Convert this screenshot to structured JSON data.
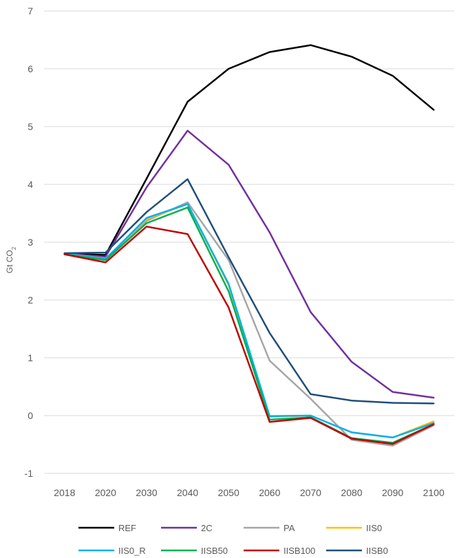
{
  "chart_data": {
    "type": "line",
    "title": "",
    "xlabel": "",
    "ylabel_main": "Gt CO",
    "ylabel_sub": "2",
    "ylim": [
      -1,
      7
    ],
    "yticks": [
      "-1",
      "0",
      "1",
      "2",
      "3",
      "4",
      "5",
      "6",
      "7"
    ],
    "categories": [
      "2018",
      "2020",
      "2030",
      "2040",
      "2050",
      "2060",
      "2070",
      "2080",
      "2090",
      "2100"
    ],
    "grid": "horizontal",
    "legend_position": "bottom",
    "series": [
      {
        "name": "REF",
        "color": "#000000",
        "values": [
          2.8,
          2.78,
          4.1,
          5.43,
          6.0,
          6.29,
          6.41,
          6.21,
          5.88,
          5.29
        ]
      },
      {
        "name": "2C",
        "color": "#7030A0",
        "values": [
          2.8,
          2.75,
          3.95,
          4.93,
          4.34,
          3.17,
          1.79,
          0.93,
          0.41,
          0.31
        ]
      },
      {
        "name": "PA",
        "color": "#A6A6A6",
        "values": [
          2.8,
          2.72,
          3.37,
          3.69,
          2.69,
          0.95,
          0.29,
          -0.42,
          -0.52,
          -0.17
        ]
      },
      {
        "name": "IIS0",
        "color": "#FFC000",
        "values": [
          2.8,
          2.71,
          3.4,
          3.66,
          2.26,
          -0.02,
          0.0,
          -0.29,
          -0.38,
          -0.1
        ]
      },
      {
        "name": "IIS0_R",
        "color": "#00B0F0",
        "values": [
          2.8,
          2.71,
          3.42,
          3.66,
          2.28,
          -0.01,
          0.0,
          -0.29,
          -0.38,
          -0.13
        ]
      },
      {
        "name": "IISB50",
        "color": "#00B050",
        "values": [
          2.79,
          2.69,
          3.33,
          3.6,
          2.15,
          -0.07,
          -0.03,
          -0.39,
          -0.47,
          -0.15
        ]
      },
      {
        "name": "IISB100",
        "color": "#C00000",
        "values": [
          2.79,
          2.65,
          3.27,
          3.14,
          1.87,
          -0.11,
          -0.04,
          -0.4,
          -0.49,
          -0.15
        ]
      },
      {
        "name": "IISB0",
        "color": "#1F4E79",
        "values": [
          2.81,
          2.82,
          3.52,
          4.09,
          2.74,
          1.43,
          0.37,
          0.26,
          0.22,
          0.21
        ]
      }
    ]
  },
  "legend_rows": [
    [
      "REF",
      "2C",
      "PA",
      "IIS0"
    ],
    [
      "IIS0_R",
      "IISB50",
      "IISB100",
      "IISB0"
    ]
  ]
}
